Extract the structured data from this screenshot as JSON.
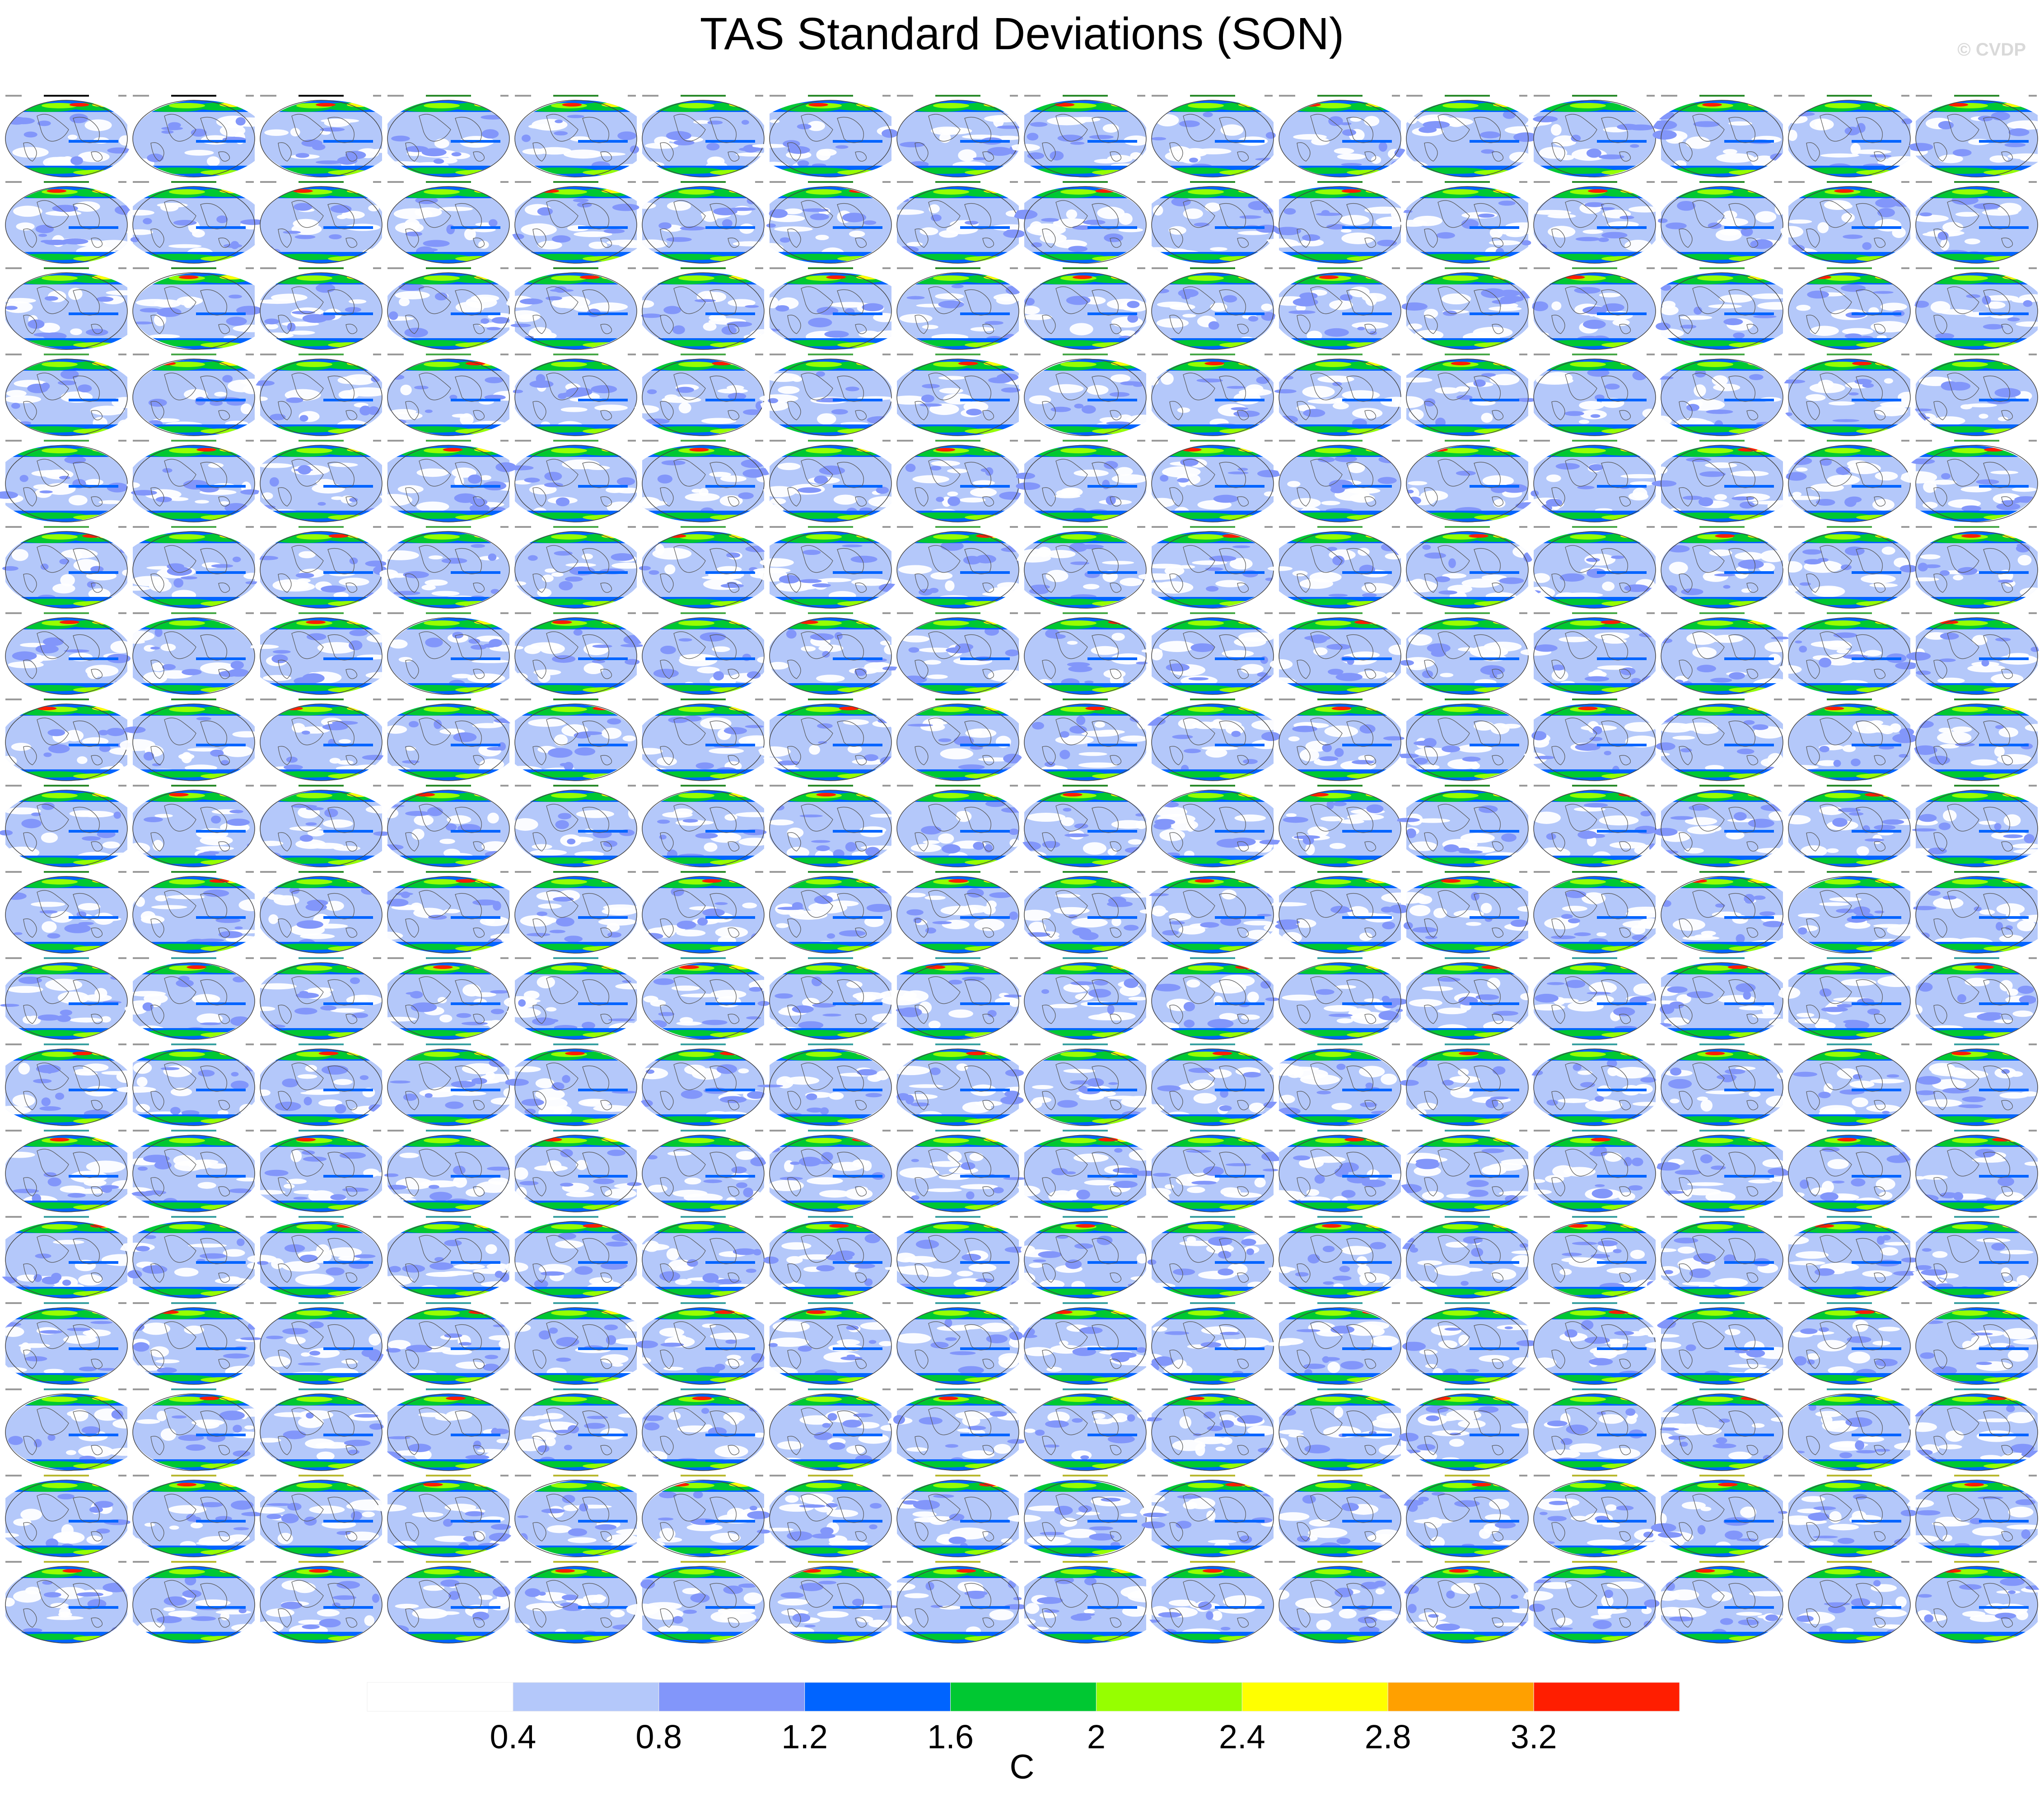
{
  "title": "TAS Standard Deviations (SON)",
  "watermark": "© CVDP",
  "chart_data": {
    "type": "heatmap",
    "description_type": "panel-grid of global map fields",
    "title": "TAS Standard Deviations (SON)",
    "panel_rows": 18,
    "panel_cols": 16,
    "period_labels_seen": [
      "1950-2022",
      "1979-2022"
    ],
    "colorbar": {
      "units": "C",
      "levels": [
        0.4,
        0.8,
        1.2,
        1.6,
        2,
        2.4,
        2.8,
        3.2
      ],
      "tick_labels": [
        "0.4",
        "0.8",
        "1.2",
        "1.6",
        "2",
        "2.4",
        "2.8",
        "3.2"
      ],
      "colors": [
        "#ffffff",
        "#b4c8fa",
        "#8296fa",
        "#0064ff",
        "#00c832",
        "#96ff00",
        "#ffff00",
        "#ffa000",
        "#ff1e00"
      ]
    },
    "panel_titles_readable": [
      "BEST",
      "GISTEMP",
      "HadCRUT5.0.2"
    ],
    "panel_family_colors": {
      "observations": "#000000",
      "ACCESS-ESM1-5": "#2a8a2a",
      "CanESM5": "#48a848",
      "CESM1": "#2a8a2a",
      "CESM2": "#3aa0a0",
      "late-rows": "#b8b830"
    }
  }
}
